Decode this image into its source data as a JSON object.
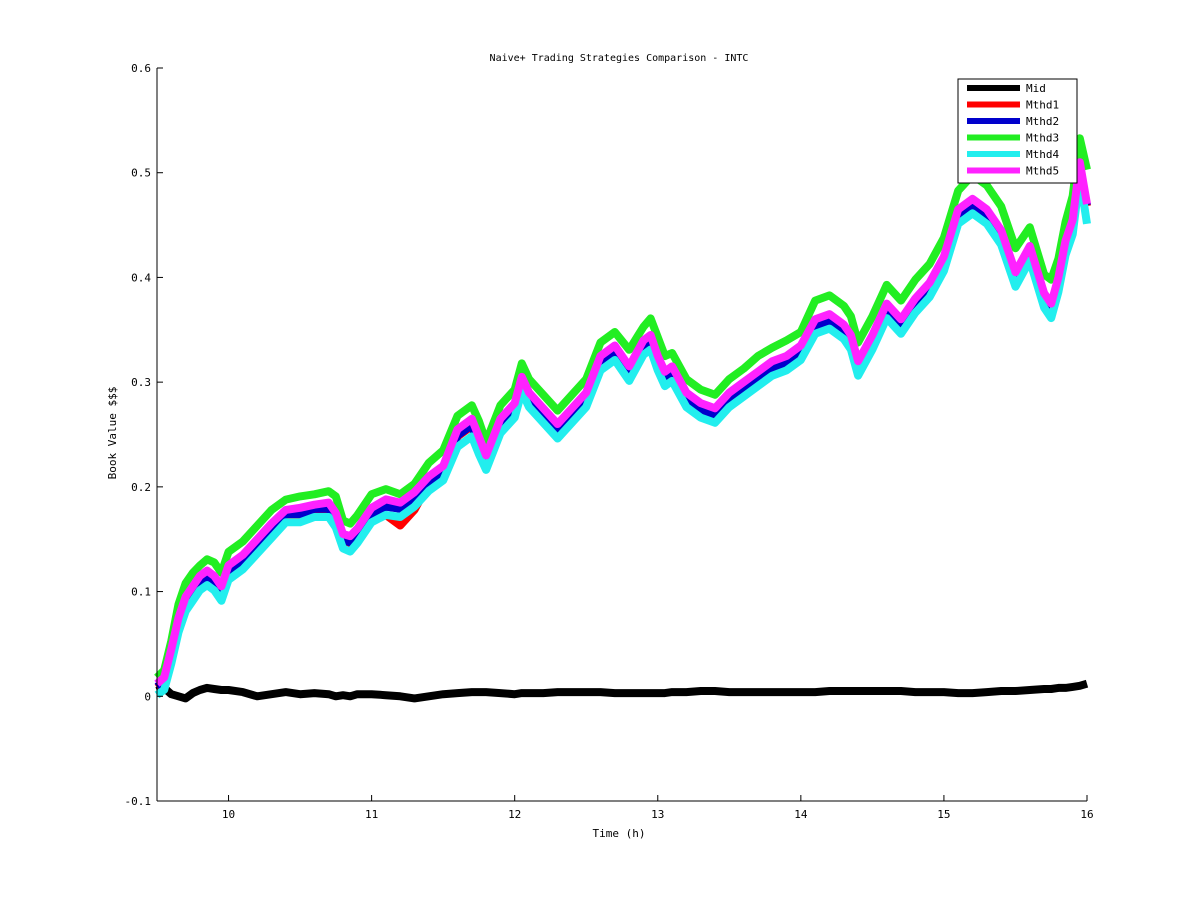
{
  "chart_data": {
    "type": "line",
    "title": "Naive+ Trading Strategies Comparison - INTC",
    "xlabel": "Time (h)",
    "ylabel": "Book Value $$$",
    "xlim": [
      9.5,
      16
    ],
    "ylim": [
      -0.1,
      0.6
    ],
    "xticks": [
      "10",
      "11",
      "12",
      "13",
      "14",
      "15",
      "16"
    ],
    "yticks": [
      "-0.1",
      "0",
      "0.1",
      "0.2",
      "0.3",
      "0.4",
      "0.5",
      "0.6"
    ],
    "grid": false,
    "legend_position": "top-right",
    "x": [
      9.5,
      9.55,
      9.6,
      9.65,
      9.7,
      9.75,
      9.8,
      9.85,
      9.9,
      9.95,
      10.0,
      10.1,
      10.2,
      10.3,
      10.4,
      10.5,
      10.6,
      10.7,
      10.75,
      10.8,
      10.85,
      10.9,
      11.0,
      11.1,
      11.2,
      11.3,
      11.4,
      11.5,
      11.6,
      11.7,
      11.75,
      11.8,
      11.9,
      12.0,
      12.05,
      12.1,
      12.2,
      12.3,
      12.4,
      12.5,
      12.6,
      12.7,
      12.8,
      12.9,
      12.95,
      13.0,
      13.05,
      13.1,
      13.2,
      13.3,
      13.4,
      13.5,
      13.6,
      13.7,
      13.8,
      13.9,
      14.0,
      14.1,
      14.2,
      14.3,
      14.35,
      14.4,
      14.5,
      14.6,
      14.7,
      14.8,
      14.9,
      15.0,
      15.1,
      15.2,
      15.3,
      15.4,
      15.5,
      15.6,
      15.7,
      15.75,
      15.8,
      15.85,
      15.9,
      15.95,
      16.0
    ],
    "series": [
      {
        "name": "Mid",
        "color": "#000000",
        "values": [
          0.005,
          0.008,
          0.002,
          0.0,
          -0.002,
          0.003,
          0.006,
          0.008,
          0.007,
          0.006,
          0.006,
          0.004,
          0.0,
          0.002,
          0.004,
          0.002,
          0.003,
          0.002,
          0.0,
          0.001,
          0.0,
          0.002,
          0.002,
          0.001,
          0.0,
          -0.002,
          0.0,
          0.002,
          0.003,
          0.004,
          0.004,
          0.004,
          0.003,
          0.002,
          0.003,
          0.003,
          0.003,
          0.004,
          0.004,
          0.004,
          0.004,
          0.003,
          0.003,
          0.003,
          0.003,
          0.003,
          0.003,
          0.004,
          0.004,
          0.005,
          0.005,
          0.004,
          0.004,
          0.004,
          0.004,
          0.004,
          0.004,
          0.004,
          0.005,
          0.005,
          0.005,
          0.005,
          0.005,
          0.005,
          0.005,
          0.004,
          0.004,
          0.004,
          0.003,
          0.003,
          0.004,
          0.005,
          0.005,
          0.006,
          0.007,
          0.007,
          0.008,
          0.008,
          0.009,
          0.01,
          0.012
        ]
      },
      {
        "name": "Mthd1",
        "color": "#ff0000",
        "values": [
          0.01,
          0.015,
          0.04,
          0.07,
          0.09,
          0.1,
          0.11,
          0.115,
          0.11,
          0.1,
          0.12,
          0.13,
          0.145,
          0.16,
          0.175,
          0.175,
          0.18,
          0.18,
          0.17,
          0.15,
          0.148,
          0.155,
          0.17,
          0.175,
          0.165,
          0.18,
          0.205,
          0.215,
          0.25,
          0.26,
          0.24,
          0.225,
          0.26,
          0.275,
          0.3,
          0.285,
          0.27,
          0.255,
          0.27,
          0.285,
          0.32,
          0.33,
          0.31,
          0.335,
          0.34,
          0.32,
          0.305,
          0.31,
          0.285,
          0.275,
          0.27,
          0.285,
          0.295,
          0.305,
          0.315,
          0.32,
          0.33,
          0.355,
          0.36,
          0.35,
          0.34,
          0.315,
          0.34,
          0.37,
          0.355,
          0.375,
          0.39,
          0.415,
          0.46,
          0.47,
          0.46,
          0.44,
          0.4,
          0.425,
          0.38,
          0.37,
          0.395,
          0.43,
          0.45,
          0.505,
          0.47
        ]
      },
      {
        "name": "Mthd2",
        "color": "#0000cc",
        "values": [
          0.01,
          0.015,
          0.04,
          0.072,
          0.092,
          0.1,
          0.11,
          0.115,
          0.108,
          0.1,
          0.12,
          0.13,
          0.145,
          0.16,
          0.175,
          0.175,
          0.18,
          0.18,
          0.17,
          0.15,
          0.148,
          0.155,
          0.175,
          0.182,
          0.18,
          0.19,
          0.205,
          0.215,
          0.25,
          0.26,
          0.24,
          0.225,
          0.26,
          0.275,
          0.3,
          0.285,
          0.27,
          0.255,
          0.27,
          0.285,
          0.32,
          0.33,
          0.31,
          0.335,
          0.34,
          0.32,
          0.305,
          0.31,
          0.285,
          0.275,
          0.27,
          0.285,
          0.295,
          0.305,
          0.315,
          0.32,
          0.33,
          0.355,
          0.36,
          0.35,
          0.34,
          0.315,
          0.34,
          0.37,
          0.355,
          0.375,
          0.39,
          0.415,
          0.46,
          0.47,
          0.46,
          0.44,
          0.4,
          0.425,
          0.38,
          0.37,
          0.395,
          0.43,
          0.45,
          0.505,
          0.47
        ]
      },
      {
        "name": "Mthd3",
        "color": "#22ee22",
        "values": [
          0.015,
          0.022,
          0.05,
          0.085,
          0.105,
          0.115,
          0.122,
          0.128,
          0.125,
          0.115,
          0.135,
          0.145,
          0.16,
          0.175,
          0.185,
          0.188,
          0.19,
          0.193,
          0.188,
          0.165,
          0.162,
          0.17,
          0.19,
          0.195,
          0.19,
          0.2,
          0.22,
          0.232,
          0.265,
          0.275,
          0.26,
          0.24,
          0.275,
          0.29,
          0.315,
          0.3,
          0.285,
          0.27,
          0.285,
          0.3,
          0.335,
          0.345,
          0.328,
          0.35,
          0.358,
          0.34,
          0.322,
          0.325,
          0.3,
          0.29,
          0.285,
          0.3,
          0.31,
          0.322,
          0.33,
          0.337,
          0.345,
          0.375,
          0.38,
          0.37,
          0.36,
          0.335,
          0.36,
          0.39,
          0.375,
          0.395,
          0.41,
          0.435,
          0.48,
          0.495,
          0.485,
          0.465,
          0.425,
          0.445,
          0.4,
          0.395,
          0.415,
          0.45,
          0.475,
          0.53,
          0.5
        ]
      },
      {
        "name": "Mthd4",
        "color": "#22eeee",
        "values": [
          0.005,
          0.01,
          0.035,
          0.065,
          0.085,
          0.095,
          0.105,
          0.11,
          0.105,
          0.095,
          0.115,
          0.125,
          0.14,
          0.155,
          0.17,
          0.17,
          0.175,
          0.175,
          0.165,
          0.145,
          0.142,
          0.15,
          0.17,
          0.177,
          0.175,
          0.185,
          0.2,
          0.21,
          0.242,
          0.252,
          0.235,
          0.22,
          0.255,
          0.27,
          0.295,
          0.28,
          0.265,
          0.25,
          0.265,
          0.28,
          0.315,
          0.325,
          0.305,
          0.33,
          0.335,
          0.315,
          0.3,
          0.305,
          0.28,
          0.27,
          0.265,
          0.28,
          0.29,
          0.3,
          0.31,
          0.315,
          0.325,
          0.35,
          0.355,
          0.345,
          0.335,
          0.31,
          0.335,
          0.365,
          0.35,
          0.37,
          0.385,
          0.41,
          0.455,
          0.465,
          0.455,
          0.435,
          0.395,
          0.42,
          0.375,
          0.365,
          0.39,
          0.425,
          0.445,
          0.5,
          0.455
        ]
      },
      {
        "name": "Mthd5",
        "color": "#ff22ff",
        "values": [
          0.012,
          0.018,
          0.045,
          0.075,
          0.095,
          0.105,
          0.115,
          0.12,
          0.115,
          0.105,
          0.125,
          0.135,
          0.15,
          0.165,
          0.178,
          0.18,
          0.183,
          0.185,
          0.175,
          0.155,
          0.153,
          0.16,
          0.18,
          0.188,
          0.185,
          0.195,
          0.21,
          0.22,
          0.255,
          0.265,
          0.248,
          0.23,
          0.265,
          0.28,
          0.305,
          0.29,
          0.275,
          0.26,
          0.275,
          0.29,
          0.325,
          0.335,
          0.315,
          0.34,
          0.345,
          0.325,
          0.31,
          0.315,
          0.29,
          0.28,
          0.275,
          0.29,
          0.3,
          0.31,
          0.32,
          0.325,
          0.335,
          0.36,
          0.365,
          0.355,
          0.345,
          0.32,
          0.345,
          0.375,
          0.36,
          0.38,
          0.395,
          0.42,
          0.465,
          0.475,
          0.465,
          0.445,
          0.405,
          0.43,
          0.385,
          0.375,
          0.4,
          0.435,
          0.455,
          0.51,
          0.47
        ]
      }
    ]
  }
}
